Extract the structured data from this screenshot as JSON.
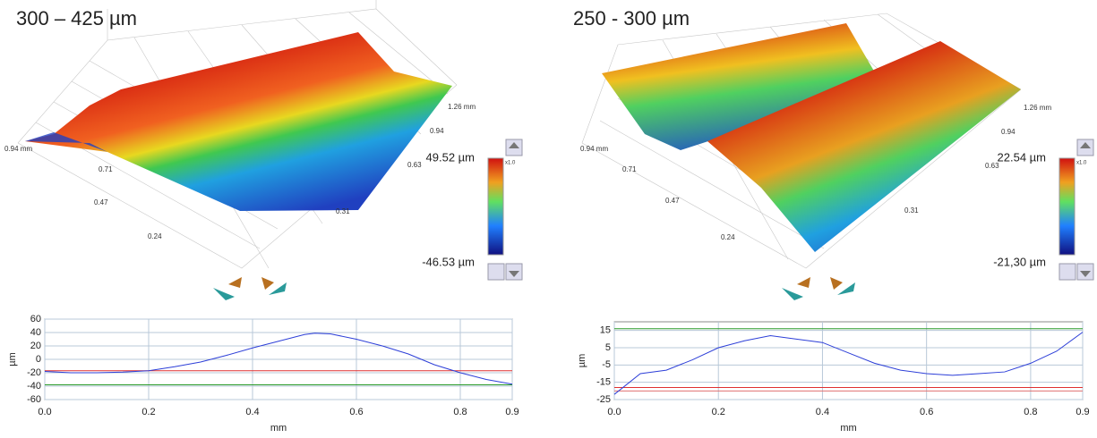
{
  "chart_data": [
    {
      "type": "line",
      "title": "300 – 425 µm",
      "surface_x_labels": [
        "0.94 mm",
        "0.71",
        "0.47",
        "0.24"
      ],
      "surface_y_labels": [
        "1.26 mm",
        "0.94",
        "0.63",
        "0.31"
      ],
      "colorbar_max": "49.52 µm",
      "colorbar_min": "-46.53 µm",
      "colorbar_scale": "x1.0",
      "xlabel": "mm",
      "ylabel": "µm",
      "x": [
        0,
        0.05,
        0.1,
        0.15,
        0.2,
        0.25,
        0.3,
        0.35,
        0.4,
        0.45,
        0.5,
        0.52,
        0.55,
        0.6,
        0.65,
        0.7,
        0.75,
        0.8,
        0.85,
        0.9
      ],
      "series": [
        {
          "color": "#2d3fd8",
          "values": [
            -18,
            -20,
            -20,
            -19,
            -17,
            -11,
            -4,
            6,
            17,
            27,
            37,
            39,
            38,
            30,
            20,
            8,
            -8,
            -20,
            -30,
            -37
          ]
        }
      ],
      "reference_lines": [
        {
          "value": -17,
          "color": "#e03030"
        },
        {
          "value": -38,
          "color": "#2a9a2a"
        }
      ],
      "xlim": [
        0,
        0.9
      ],
      "ylim": [
        -60,
        60
      ],
      "xticks": [
        {
          "value": 0,
          "label": "0.0"
        },
        0.2,
        0.4,
        0.6,
        0.8,
        0.9
      ],
      "yticks": [
        -60,
        -40,
        -20,
        0,
        20,
        40,
        60
      ],
      "grid": true
    },
    {
      "type": "line",
      "title": "250 - 300 µm",
      "surface_x_labels": [
        "0.94 mm",
        "0.71",
        "0.47",
        "0.24"
      ],
      "surface_y_labels": [
        "1.26 mm",
        "0.94",
        "0.63",
        "0.31"
      ],
      "colorbar_max": "22.54 µm",
      "colorbar_min": "-21,30 µm",
      "colorbar_scale": "x1.0",
      "xlabel": "mm",
      "ylabel": "µm",
      "x": [
        0,
        0.05,
        0.1,
        0.15,
        0.2,
        0.25,
        0.3,
        0.35,
        0.4,
        0.45,
        0.5,
        0.55,
        0.6,
        0.65,
        0.7,
        0.75,
        0.8,
        0.85,
        0.9
      ],
      "series": [
        {
          "color": "#2d3fd8",
          "values": [
            -22,
            -10,
            -8,
            -2,
            5,
            9,
            12,
            10,
            8,
            2,
            -4,
            -8,
            -10,
            -11,
            -10,
            -9,
            -4,
            3,
            14
          ]
        }
      ],
      "reference_lines": [
        {
          "value": 16,
          "color": "#2a9a2a"
        },
        {
          "value": -18,
          "color": "#e03030"
        },
        {
          "value": -20,
          "color": "#e07070"
        }
      ],
      "xlim": [
        0,
        0.9
      ],
      "ylim": [
        -25,
        20
      ],
      "xticks": [
        {
          "value": 0,
          "label": "0.0"
        },
        0.2,
        0.4,
        0.6,
        0.8,
        0.9
      ],
      "yticks": [
        -25,
        -15,
        -5,
        5,
        15
      ],
      "grid": true
    }
  ]
}
